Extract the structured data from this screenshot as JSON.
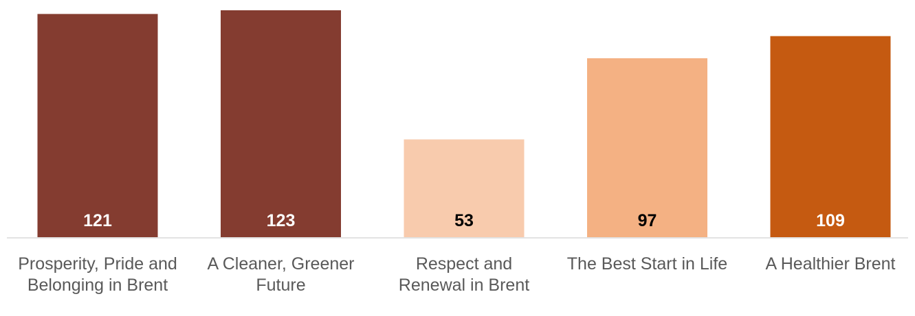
{
  "chart_data": {
    "type": "bar",
    "categories": [
      "Prosperity, Pride and Belonging in Brent",
      "A Cleaner, Greener Future",
      "Respect and Renewal in Brent",
      "The Best Start in Life",
      "A Healthier Brent"
    ],
    "values": [
      121,
      123,
      53,
      97,
      109
    ],
    "data_labels": [
      "121",
      "123",
      "53",
      "97",
      "109"
    ],
    "bar_colors": [
      "#843C30",
      "#843C30",
      "#F8CBAD",
      "#F4B183",
      "#C55A11"
    ],
    "label_colors": [
      "#FFFFFF",
      "#FFFFFF",
      "#000000",
      "#000000",
      "#FFFFFF"
    ],
    "ylim": [
      0,
      123
    ],
    "grid": false,
    "legend": "none",
    "title": "",
    "xlabel": "",
    "ylabel": ""
  }
}
